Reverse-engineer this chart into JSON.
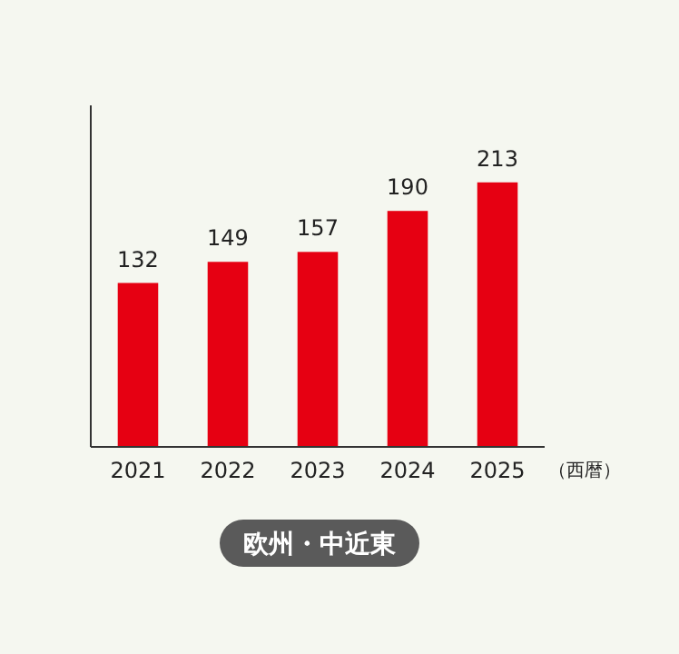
{
  "chart_data": {
    "type": "bar",
    "title": "欧州・中近東",
    "xlabel": "（西暦）",
    "categories": [
      "2021",
      "2022",
      "2023",
      "2024",
      "2025"
    ],
    "values": [
      132,
      149,
      157,
      190,
      213
    ],
    "color": "#e60012",
    "data_labels": true,
    "ylim": [
      0,
      275
    ],
    "tick_labels": "x"
  }
}
